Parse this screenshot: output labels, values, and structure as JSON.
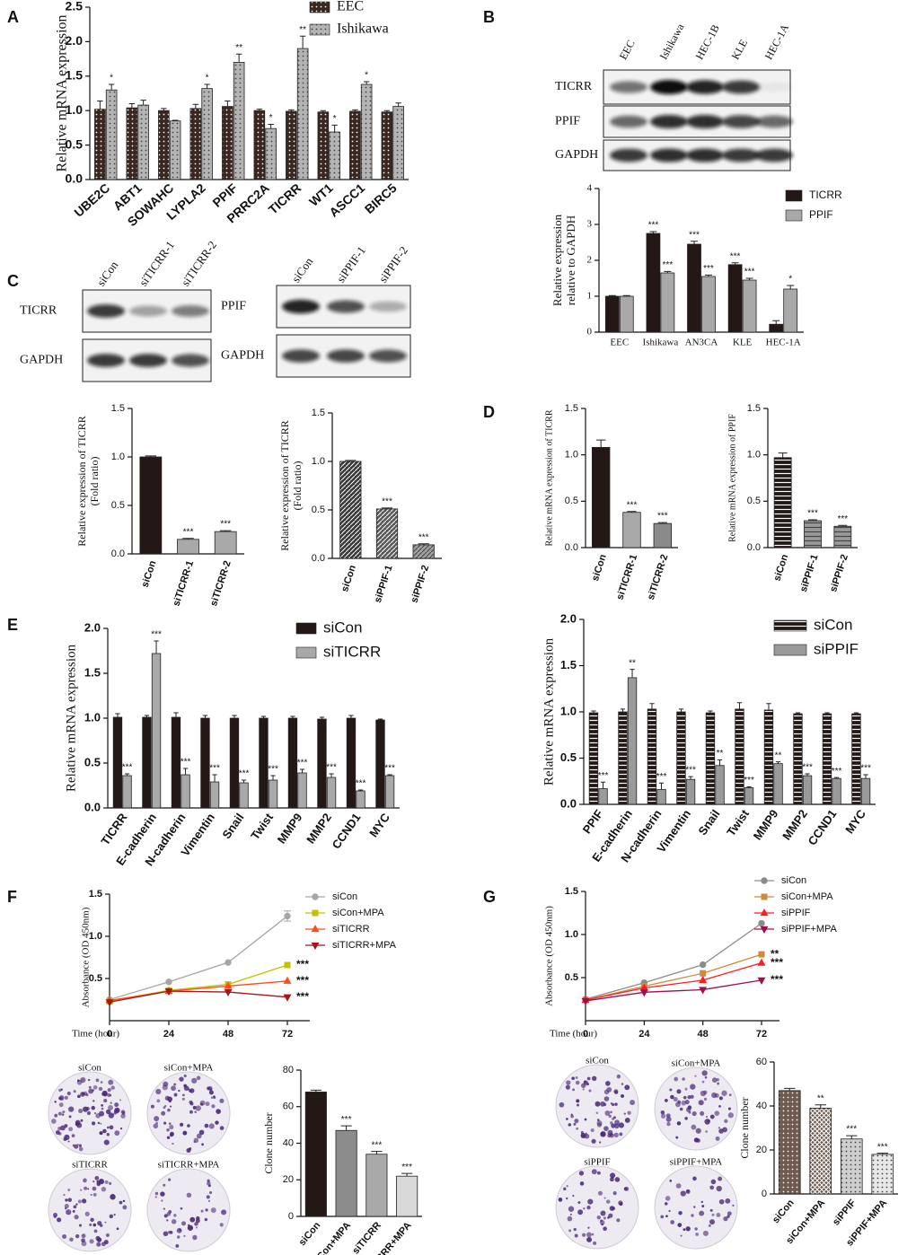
{
  "panel_labels": [
    "A",
    "B",
    "C",
    "D",
    "E",
    "F",
    "G"
  ],
  "blots": [
    {
      "lanes": [
        "EEC",
        "Ishikawa",
        "HEC-1B",
        "KLE",
        "HEC-1A"
      ],
      "rows": [
        "TICRR",
        "PPIF",
        "GAPDH"
      ]
    },
    {
      "lanes": [
        "siCon",
        "siTICRR-1",
        "siTICRR-2"
      ],
      "rows": [
        "TICRR",
        "GAPDH"
      ]
    },
    {
      "lanes": [
        "siCon",
        "siPPIF-1",
        "siPPIF-2"
      ],
      "rows": [
        "PPIF",
        "GAPDH"
      ]
    }
  ],
  "colonies": [
    {
      "labels": [
        "siCon",
        "siCon+MPA",
        "siTICRR",
        "siTICRR+MPA"
      ]
    },
    {
      "labels": [
        "siCon",
        "siCon+MPA",
        "siPPIF",
        "siPPIF+MPA"
      ]
    }
  ],
  "chart_data": [
    {
      "type": "bar",
      "ylabel": "Relative mRNA expression",
      "categories": [
        "UBE2C",
        "ABT1",
        "SOWAHC",
        "LYPLA2",
        "PPIF",
        "PRRC2A",
        "TICRR",
        "WT1",
        "ASCC1",
        "BIRC5"
      ],
      "series": [
        {
          "name": "EEC",
          "color": "#3b2620",
          "pattern": "dots",
          "values": [
            1.02,
            1.04,
            1.0,
            1.03,
            1.06,
            1.0,
            0.99,
            0.98,
            0.99,
            0.98
          ],
          "errors": [
            0.12,
            0.06,
            0.03,
            0.06,
            0.08,
            0.02,
            0.02,
            0.02,
            0.02,
            0.02
          ]
        },
        {
          "name": "Ishikawa",
          "color": "#b4b4b4",
          "pattern": "dots",
          "values": [
            1.3,
            1.08,
            0.85,
            1.32,
            1.7,
            0.74,
            1.9,
            0.69,
            1.38,
            1.06
          ],
          "errors": [
            0.08,
            0.07,
            0.01,
            0.06,
            0.12,
            0.06,
            0.18,
            0.1,
            0.04,
            0.05
          ],
          "significance": [
            "*",
            null,
            null,
            "*",
            "**",
            "*",
            "**",
            "*",
            "*",
            null
          ]
        }
      ],
      "ylim": [
        0,
        2.5
      ],
      "yticks": [
        {
          "value": 0,
          "label": "0.0"
        },
        0.5,
        {
          "value": 1,
          "label": "1.0"
        },
        1.5,
        {
          "value": 2,
          "label": "2.0"
        },
        2.5
      ]
    },
    {
      "type": "bar",
      "ylabel": [
        "Relative expression",
        "relative to GAPDH"
      ],
      "categories": [
        "EEC",
        "Ishikawa",
        "AN3CA",
        "KLE",
        "HEC-1A"
      ],
      "series": [
        {
          "name": "TICRR",
          "color": "#231815",
          "values": [
            1.0,
            2.75,
            2.45,
            1.88,
            0.22
          ],
          "errors": [
            0.02,
            0.05,
            0.08,
            0.05,
            0.1
          ],
          "significance": [
            null,
            "***",
            "***",
            "***",
            null
          ]
        },
        {
          "name": "PPIF",
          "color": "#a9a9a9",
          "values": [
            1.0,
            1.65,
            1.55,
            1.45,
            1.2
          ],
          "errors": [
            0.02,
            0.04,
            0.04,
            0.05,
            0.1
          ],
          "significance": [
            null,
            "***",
            "***",
            "***",
            "*"
          ]
        }
      ],
      "ylim": [
        0,
        4
      ],
      "yticks": [
        0,
        1,
        2,
        3,
        4
      ]
    },
    {
      "type": "bar",
      "ylabel": [
        "Relative expression of TICRR",
        "(Fold ratio)"
      ],
      "categories": [
        "siCon",
        "siTICRR-1",
        "siTICRR-2"
      ],
      "values": [
        1.0,
        0.15,
        0.23
      ],
      "errors": [
        0.01,
        0.01,
        0.01
      ],
      "colors": [
        "#231815",
        "#a9a9a9",
        "#a9a9a9"
      ],
      "significance": [
        null,
        "***",
        "***"
      ],
      "ylim": [
        0,
        1.5
      ],
      "yticks": [
        {
          "value": 0,
          "label": "0.0"
        },
        0.5,
        {
          "value": 1,
          "label": "1.0"
        },
        1.5
      ]
    },
    {
      "type": "bar",
      "ylabel": [
        "Relative expression of TICRR",
        "(Fold ratio)"
      ],
      "categories": [
        "siCon",
        "siPPIF-1",
        "siPPIF-2"
      ],
      "values": [
        1.0,
        0.51,
        0.14
      ],
      "errors": [
        0.01,
        0.01,
        0.01
      ],
      "colors": [
        "#3a3a3a",
        "#5a5a5a",
        "#a0a0a0"
      ],
      "pattern": "hatch",
      "significance": [
        null,
        "***",
        "***"
      ],
      "ylim": [
        0,
        1.5
      ],
      "yticks": [
        {
          "value": 0,
          "label": "0.0"
        },
        0.5,
        {
          "value": 1,
          "label": "1.0"
        },
        1.5
      ]
    },
    {
      "type": "bar",
      "ylabel": "Relative mRNA expression of TICRR",
      "categories": [
        "siCon",
        "siTICRR-1",
        "siTICRR-2"
      ],
      "values": [
        1.08,
        0.38,
        0.26
      ],
      "errors": [
        0.08,
        0.01,
        0.01
      ],
      "colors": [
        "#231815",
        "#a9a9a9",
        "#8a8a8a"
      ],
      "significance": [
        null,
        "***",
        "***"
      ],
      "ylim": [
        0,
        1.5
      ],
      "yticks": [
        {
          "value": 0,
          "label": "0.0"
        },
        0.5,
        {
          "value": 1,
          "label": "1.0"
        },
        1.5
      ]
    },
    {
      "type": "bar",
      "ylabel": "Relative mRNA expression of PPIF",
      "categories": [
        "siCon",
        "siPPIF-1",
        "siPPIF-2"
      ],
      "values": [
        0.97,
        0.29,
        0.23
      ],
      "errors": [
        0.05,
        0.01,
        0.01
      ],
      "colors": [
        "#231815",
        "#9a9a9a",
        "#9a9a9a"
      ],
      "pattern": "hlines",
      "significance": [
        null,
        "***",
        "***"
      ],
      "ylim": [
        0,
        1.5
      ],
      "yticks": [
        {
          "value": 0,
          "label": "0.0"
        },
        0.5,
        {
          "value": 1,
          "label": "1.0"
        },
        1.5
      ]
    },
    {
      "type": "bar",
      "ylabel": "Relative mRNA expression",
      "categories": [
        "TICRR",
        "E-cadherin",
        "N-cadherin",
        "Vimentin",
        "Snail",
        "Twist",
        "MMP9",
        "MMP2",
        "CCND1",
        "MYC"
      ],
      "series": [
        {
          "name": "siCon",
          "color": "#231815",
          "values": [
            1.01,
            1.01,
            1.01,
            1.0,
            1.0,
            1.0,
            1.0,
            0.99,
            1.0,
            0.98
          ],
          "errors": [
            0.04,
            0.02,
            0.05,
            0.03,
            0.03,
            0.02,
            0.02,
            0.02,
            0.03,
            0.01
          ]
        },
        {
          "name": "siTICRR",
          "color": "#a9a9a9",
          "values": [
            0.36,
            1.72,
            0.37,
            0.29,
            0.28,
            0.31,
            0.39,
            0.34,
            0.19,
            0.36
          ],
          "errors": [
            0.02,
            0.14,
            0.07,
            0.08,
            0.03,
            0.05,
            0.04,
            0.04,
            0.01,
            0.01
          ],
          "significance": [
            "***",
            "***",
            "***",
            "***",
            "***",
            "***",
            "***",
            "***",
            "***",
            "***"
          ]
        }
      ],
      "ylim": [
        0,
        2
      ],
      "yticks": [
        {
          "value": 0,
          "label": "0.0"
        },
        0.5,
        {
          "value": 1,
          "label": "1.0"
        },
        1.5,
        {
          "value": 2,
          "label": "2.0"
        }
      ]
    },
    {
      "type": "bar",
      "ylabel": "Relative mRNA expression",
      "categories": [
        "PPIF",
        "E-cadherin",
        "N-cadherin",
        "Vimentin",
        "Snail",
        "Twist",
        "MMP9",
        "MMP2",
        "CCND1",
        "MYC"
      ],
      "series": [
        {
          "name": "siCon",
          "color": "#231815",
          "pattern": "hlines",
          "values": [
            0.99,
            1.0,
            1.03,
            1.0,
            0.99,
            1.03,
            1.02,
            0.98,
            0.98,
            0.98
          ],
          "errors": [
            0.02,
            0.03,
            0.06,
            0.03,
            0.02,
            0.07,
            0.07,
            0.01,
            0.01,
            0.01
          ]
        },
        {
          "name": "siPPIF",
          "color": "#9a9a9a",
          "values": [
            0.17,
            1.37,
            0.16,
            0.27,
            0.42,
            0.18,
            0.44,
            0.31,
            0.28,
            0.28
          ],
          "errors": [
            0.07,
            0.09,
            0.07,
            0.03,
            0.06,
            0.01,
            0.02,
            0.02,
            0.01,
            0.04
          ],
          "significance": [
            "***",
            "**",
            "***",
            "***",
            "**",
            "***",
            "**",
            "***",
            "***",
            "***"
          ]
        }
      ],
      "ylim": [
        0,
        2
      ],
      "yticks": [
        {
          "value": 0,
          "label": "0.0"
        },
        0.5,
        {
          "value": 1,
          "label": "1.0"
        },
        1.5,
        {
          "value": 2,
          "label": "2.0"
        }
      ]
    },
    {
      "type": "line",
      "xlabel": "Time (hour)",
      "ylabel": "Absorbance (OD 450nm)",
      "x": [
        0,
        24,
        48,
        72
      ],
      "xlim": [
        0,
        72
      ],
      "xticks": [
        0,
        24,
        48,
        72
      ],
      "series": [
        {
          "name": "siCon",
          "color": "#a6a6a6",
          "marker": "circle",
          "values": [
            0.25,
            0.46,
            0.69,
            1.24
          ],
          "errors": [
            null,
            null,
            null,
            0.06
          ]
        },
        {
          "name": "siCon+MPA",
          "color": "#c2c200",
          "marker": "square",
          "values": [
            0.23,
            0.36,
            0.43,
            0.66
          ],
          "significance": [
            null,
            null,
            null,
            "***"
          ]
        },
        {
          "name": "siTICRR",
          "color": "#ff4a1a",
          "marker": "triangle-up",
          "values": [
            0.24,
            0.35,
            0.41,
            0.47
          ],
          "significance": [
            null,
            null,
            null,
            "***"
          ]
        },
        {
          "name": "siTICRR+MPA",
          "color": "#a01818",
          "marker": "triangle-down",
          "values": [
            0.22,
            0.35,
            0.34,
            0.28
          ],
          "significance": [
            null,
            null,
            null,
            "***"
          ]
        }
      ],
      "ylim": [
        0,
        1.5
      ],
      "yticks": [
        0.5,
        {
          "value": 1,
          "label": "1.0"
        },
        1.5
      ]
    },
    {
      "type": "line",
      "xlabel": "Time (hour)",
      "ylabel": "Absorbance (OD 450nm)",
      "x": [
        0,
        24,
        48,
        72
      ],
      "xlim": [
        0,
        72
      ],
      "xticks": [
        0,
        24,
        48,
        72
      ],
      "series": [
        {
          "name": "siCon",
          "color": "#8c8c8c",
          "marker": "circle",
          "values": [
            0.25,
            0.44,
            0.65,
            1.13
          ]
        },
        {
          "name": "siCon+MPA",
          "color": "#d08a3c",
          "marker": "square",
          "values": [
            0.24,
            0.4,
            0.55,
            0.77
          ],
          "significance": [
            null,
            null,
            null,
            "**"
          ]
        },
        {
          "name": "siPPIF",
          "color": "#ff1c1c",
          "marker": "triangle-up",
          "values": [
            0.24,
            0.38,
            0.47,
            0.67
          ],
          "significance": [
            null,
            null,
            null,
            "***"
          ]
        },
        {
          "name": "siPPIF+MPA",
          "color": "#9c1050",
          "marker": "triangle-down",
          "values": [
            0.23,
            0.33,
            0.36,
            0.47
          ],
          "significance": [
            null,
            null,
            null,
            "***"
          ]
        }
      ],
      "ylim": [
        0,
        1.5
      ],
      "yticks": [
        0.5,
        {
          "value": 1,
          "label": "1.0"
        },
        1.5
      ]
    },
    {
      "type": "bar",
      "ylabel": "Clone number",
      "categories": [
        "siCon",
        "siCon+MPA",
        "siTICRR",
        "siTICRR+MPA"
      ],
      "values": [
        68,
        47,
        34,
        22
      ],
      "errors": [
        1,
        2.5,
        1.5,
        1.5
      ],
      "colors": [
        "#231815",
        "#8c8c8c",
        "#a9a9a9",
        "#d9d9d9"
      ],
      "significance": [
        null,
        "***",
        "***",
        "***"
      ],
      "ylim": [
        0,
        80
      ],
      "yticks": [
        0,
        20,
        40,
        60,
        80
      ]
    },
    {
      "type": "bar",
      "ylabel": "Clone number",
      "categories": [
        "siCon",
        "siCon+MPA",
        "siPPIF",
        "siPPIF+MPA"
      ],
      "values": [
        47,
        39,
        25,
        18
      ],
      "errors": [
        1,
        1.5,
        1.5,
        0.5
      ],
      "colors": [
        "#6e5a4e",
        "#6e5a4e",
        "#cfcfcf",
        "#e8e8e8"
      ],
      "patterns": [
        "dots",
        "crosshatch",
        "dots",
        "dots"
      ],
      "significance": [
        null,
        "**",
        "***",
        "***"
      ],
      "ylim": [
        0,
        60
      ],
      "yticks": [
        0,
        20,
        40,
        60
      ]
    }
  ]
}
